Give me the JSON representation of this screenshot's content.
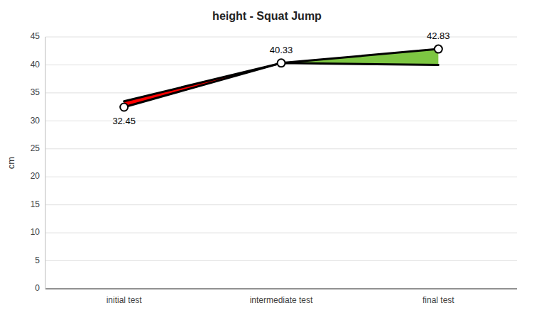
{
  "chart_data": {
    "type": "line",
    "title": "height - Squat Jump",
    "ylabel": "cm",
    "categories": [
      "initial test",
      "intermediate test",
      "final test"
    ],
    "series": [
      {
        "color": "#000000",
        "marker": "circle",
        "data_labels": true,
        "values": [
          32.45,
          40.33,
          42.83
        ]
      },
      {
        "color": "#000000",
        "values": [
          33.5,
          40.33,
          40.0
        ]
      }
    ],
    "colors": [
      "#ff0000",
      "#7dc642"
    ],
    "ylim": [
      0,
      45
    ],
    "yticks": [
      0,
      5,
      10,
      15,
      20,
      25,
      30,
      35,
      40,
      45
    ],
    "grid": true
  }
}
